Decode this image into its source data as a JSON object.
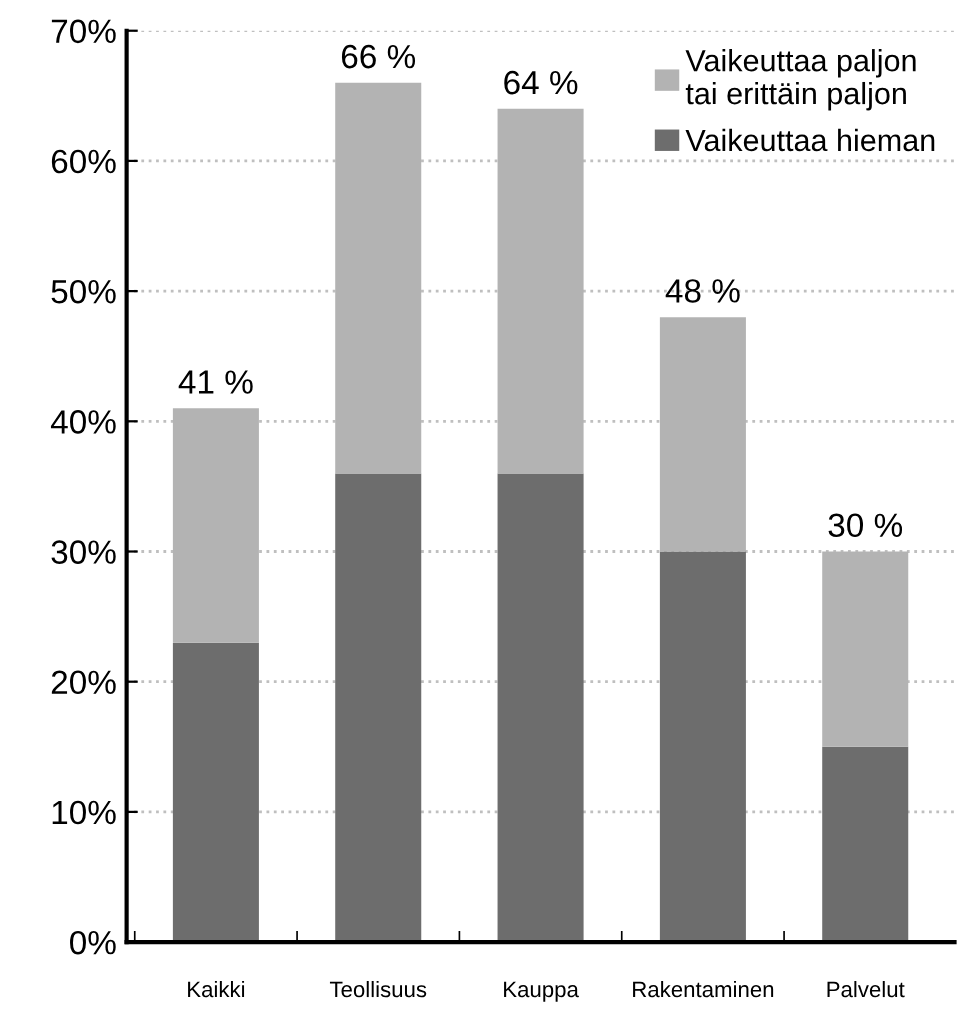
{
  "chart_data": {
    "type": "bar",
    "stacked": true,
    "categories": [
      "Kaikki",
      "Teollisuus",
      "Kauppa",
      "Rakentaminen",
      "Palvelut"
    ],
    "series": [
      {
        "name": "Vaikeuttaa hieman",
        "color": "#6d6d6d",
        "values": [
          23,
          36,
          36,
          30,
          15
        ]
      },
      {
        "name": "Vaikeuttaa paljon\ntai erittäin paljon",
        "color": "#b3b3b3",
        "values": [
          18,
          30,
          28,
          18,
          15
        ]
      }
    ],
    "totals": [
      "41 %",
      "66 %",
      "64 %",
      "48 %",
      "30 %"
    ],
    "ylim": [
      0,
      70
    ],
    "yticks": [
      {
        "value": 0,
        "label": "0%"
      },
      {
        "value": 10,
        "label": "10%"
      },
      {
        "value": 20,
        "label": "20%"
      },
      {
        "value": 30,
        "label": "30%"
      },
      {
        "value": 40,
        "label": "40%"
      },
      {
        "value": 50,
        "label": "50%"
      },
      {
        "value": 60,
        "label": "60%"
      },
      {
        "value": 70,
        "label": "70%"
      }
    ],
    "grid": "y",
    "legend": "top right"
  }
}
